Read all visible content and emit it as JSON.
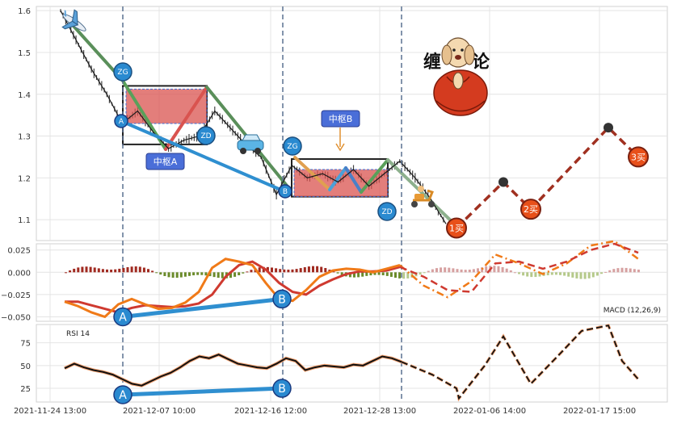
{
  "chart_data": [
    {
      "type": "line",
      "panel": "price",
      "ylim": [
        1.05,
        1.61
      ],
      "yticks": [
        1.1,
        1.2,
        1.3,
        1.4,
        1.5,
        1.6
      ],
      "ytick_labels": [
        "1.1",
        "1.2",
        "1.3",
        "1.4",
        "1.5",
        "1.6"
      ],
      "grid": true,
      "price_line": {
        "x": [
          "2021-11-24 13:00",
          "2021-11-26",
          "2021-11-29",
          "2021-12-01",
          "2021-12-02",
          "2021-12-03",
          "2021-12-06",
          "2021-12-07",
          "2021-12-08",
          "2021-12-09",
          "2021-12-10",
          "2021-12-13",
          "2021-12-14",
          "2021-12-15",
          "2021-12-16 12:00",
          "2021-12-17",
          "2021-12-20",
          "2021-12-21",
          "2021-12-22",
          "2021-12-23",
          "2021-12-24",
          "2021-12-27",
          "2021-12-28 13:00",
          "2021-12-29",
          "2021-12-30",
          "2021-12-31"
        ],
        "y": [
          1.6,
          1.53,
          1.46,
          1.4,
          1.33,
          1.36,
          1.31,
          1.27,
          1.29,
          1.3,
          1.36,
          1.32,
          1.28,
          1.25,
          1.16,
          1.23,
          1.2,
          1.21,
          1.19,
          1.22,
          1.18,
          1.21,
          1.24,
          1.2,
          1.15,
          1.09
        ]
      },
      "pivot_zones": [
        {
          "label": "中枢A",
          "zg": 1.42,
          "zd": 1.28
        },
        {
          "label": "中枢B",
          "zg": 1.22,
          "zd": 1.155
        }
      ],
      "markers": {
        "ZG": "ZG",
        "ZD": "ZD",
        "A": "A",
        "B": "B"
      },
      "forecast": {
        "points": [
          1.08,
          1.19,
          1.125,
          1.32,
          1.25
        ],
        "labels": [
          "1买",
          "",
          "2买",
          "",
          "3买"
        ]
      },
      "x_tick_labels": [
        "2021-11-24 13:00",
        "2021-12-07 10:00",
        "2021-12-16 12:00",
        "2021-12-28 13:00",
        "2022-01-06 14:00",
        "2022-01-17 15:00"
      ],
      "logo_text": "缠论"
    },
    {
      "type": "line",
      "panel": "macd",
      "legend": "MACD (12,26,9)",
      "ylim": [
        -0.055,
        0.032
      ],
      "yticks": [
        0.025,
        0.0,
        -0.025,
        -0.05
      ],
      "ytick_labels": [
        "0.025",
        "0.000",
        "−0.025",
        "−0.050"
      ],
      "dif": [
        -0.033,
        -0.038,
        -0.045,
        -0.05,
        -0.036,
        -0.03,
        -0.036,
        -0.041,
        -0.04,
        -0.034,
        -0.022,
        0.005,
        0.015,
        0.012,
        0.008,
        -0.012,
        -0.03,
        -0.032,
        -0.02,
        -0.005,
        0.002,
        0.004,
        0.003,
        0.0,
        0.004,
        0.008
      ],
      "dea": [
        -0.033,
        -0.033,
        -0.037,
        -0.041,
        -0.045,
        -0.04,
        -0.037,
        -0.038,
        -0.039,
        -0.038,
        -0.035,
        -0.025,
        -0.005,
        0.008,
        0.012,
        0.003,
        -0.012,
        -0.022,
        -0.025,
        -0.015,
        -0.008,
        -0.002,
        0.001,
        0.001,
        0.002,
        0.006
      ],
      "forecast_dif": [
        0.008,
        -0.015,
        -0.028,
        -0.01,
        0.02,
        0.01,
        -0.002,
        0.01,
        0.03,
        0.035,
        0.015
      ],
      "forecast_dea": [
        0.006,
        -0.005,
        -0.02,
        -0.022,
        0.01,
        0.012,
        0.004,
        0.012,
        0.025,
        0.032,
        0.022
      ],
      "divergence_labels": [
        "A",
        "B"
      ],
      "divergence_values": [
        -0.05,
        -0.03
      ]
    },
    {
      "type": "line",
      "panel": "rsi",
      "legend": "RSI 14",
      "ylim": [
        10,
        95
      ],
      "yticks": [
        75,
        50,
        25
      ],
      "ytick_labels": [
        "75",
        "50",
        "25"
      ],
      "values": [
        47,
        52,
        48,
        45,
        43,
        40,
        35,
        30,
        28,
        33,
        38,
        42,
        48,
        55,
        60,
        58,
        62,
        57,
        52,
        50,
        48,
        47,
        52,
        58,
        55,
        45,
        48,
        50,
        49,
        48,
        51,
        50,
        55,
        60,
        58,
        54
      ],
      "forecast": [
        54,
        40,
        25,
        14,
        50,
        82,
        30,
        60,
        88,
        94,
        55,
        35
      ],
      "divergence_labels": [
        "A",
        "B"
      ],
      "divergence_values": [
        18,
        25
      ]
    }
  ]
}
